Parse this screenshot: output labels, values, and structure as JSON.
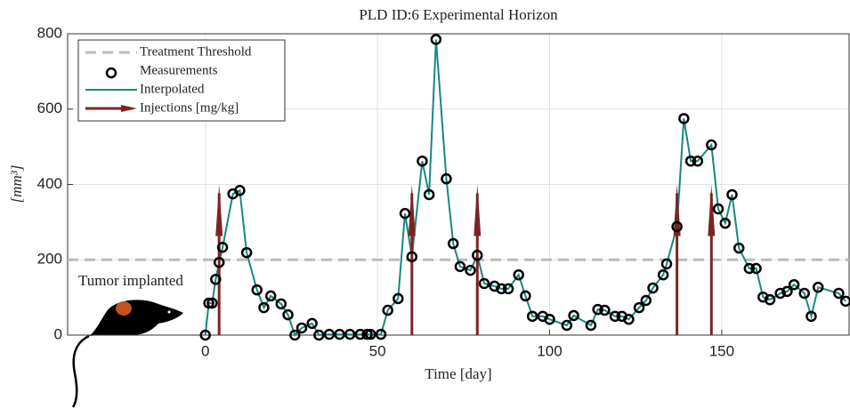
{
  "chart_data": {
    "type": "scatter",
    "title": "PLD ID:6 Experimental Horizon",
    "xlabel": "Time [day]",
    "ylabel": "[mm³]",
    "annotation": "Tumor implanted",
    "xlim": [
      -40,
      187
    ],
    "ylim": [
      0,
      800
    ],
    "xticks": [
      0,
      50,
      100,
      150
    ],
    "yticks": [
      0,
      200,
      400,
      600,
      800
    ],
    "grid": true,
    "threshold": {
      "name": "Treatment Threshold",
      "value": 200,
      "color": "#bbbbbb"
    },
    "series": [
      {
        "name": "Measurements",
        "color": "#000000",
        "x": [
          0,
          1,
          2,
          3,
          4,
          5,
          8,
          10,
          12,
          15,
          17,
          19,
          22,
          24,
          26,
          28,
          31,
          33,
          36,
          39,
          42,
          45,
          47,
          48,
          51,
          53,
          56,
          58,
          60,
          63,
          65,
          67,
          70,
          72,
          74,
          77,
          79,
          81,
          84,
          86,
          88,
          91,
          93,
          95,
          98,
          100,
          105,
          107,
          112,
          114,
          116,
          119,
          121,
          123,
          126,
          128,
          130,
          133,
          134,
          137,
          139,
          141,
          143,
          147,
          149,
          151,
          153,
          155,
          158,
          160,
          162,
          164,
          167,
          169,
          171,
          174,
          176,
          178,
          184,
          186
        ],
        "values": [
          0,
          85,
          85,
          148,
          193,
          233,
          375,
          384,
          219,
          120,
          73,
          104,
          83,
          54,
          0,
          19,
          31,
          0,
          2,
          2,
          2,
          2,
          2,
          2,
          2,
          66,
          97,
          323,
          208,
          462,
          373,
          785,
          415,
          243,
          182,
          172,
          212,
          137,
          130,
          123,
          123,
          160,
          104,
          50,
          50,
          42,
          26,
          52,
          26,
          68,
          66,
          50,
          50,
          42,
          73,
          92,
          125,
          160,
          189,
          288,
          575,
          462,
          462,
          505,
          335,
          297,
          373,
          231,
          177,
          177,
          101,
          94,
          111,
          116,
          134,
          111,
          50,
          127,
          111,
          90
        ]
      },
      {
        "name": "Interpolated",
        "color": "#17897f"
      }
    ],
    "injections": {
      "name": "Injections [mg/kg]",
      "color": "#7a2426",
      "x": [
        4,
        60,
        79,
        137,
        147
      ],
      "values": [
        400,
        400,
        400,
        400,
        400
      ]
    }
  }
}
